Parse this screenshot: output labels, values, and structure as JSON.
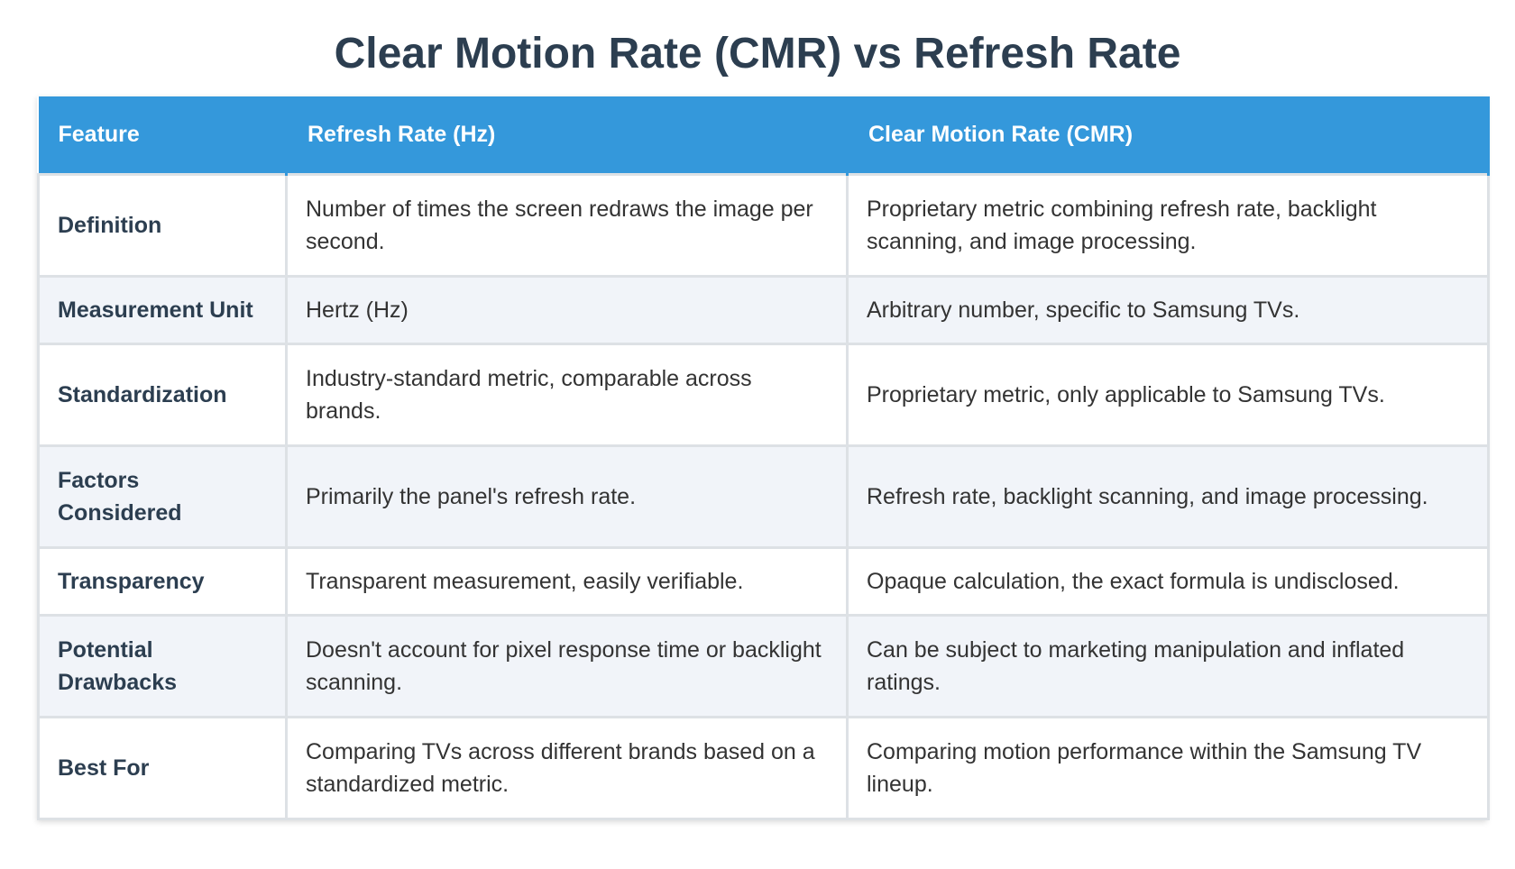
{
  "title": "Clear Motion Rate (CMR) vs Refresh Rate",
  "table": {
    "headers": [
      "Feature",
      "Refresh Rate (Hz)",
      "Clear Motion Rate (CMR)"
    ],
    "rows": [
      [
        "Definition",
        "Number of times the screen redraws the image per second.",
        "Proprietary metric combining refresh rate, backlight scanning, and image processing."
      ],
      [
        "Measurement Unit",
        "Hertz (Hz)",
        "Arbitrary number, specific to Samsung TVs."
      ],
      [
        "Standardization",
        "Industry-standard metric, comparable across brands.",
        "Proprietary metric, only applicable to Samsung TVs."
      ],
      [
        "Factors Considered",
        "Primarily the panel's refresh rate.",
        "Refresh rate, backlight scanning, and image processing."
      ],
      [
        "Transparency",
        "Transparent measurement, easily verifiable.",
        "Opaque calculation, the exact formula is undisclosed."
      ],
      [
        "Potential Drawbacks",
        "Doesn't account for pixel response time or backlight scanning.",
        "Can be subject to marketing manipulation and inflated ratings."
      ],
      [
        "Best For",
        "Comparing TVs across different brands based on a standardized metric.",
        "Comparing motion performance within the Samsung TV lineup."
      ]
    ]
  },
  "colors": {
    "header_bg": "#3498db",
    "title_text": "#2c3e50",
    "alt_row_bg": "#f1f4f9"
  }
}
